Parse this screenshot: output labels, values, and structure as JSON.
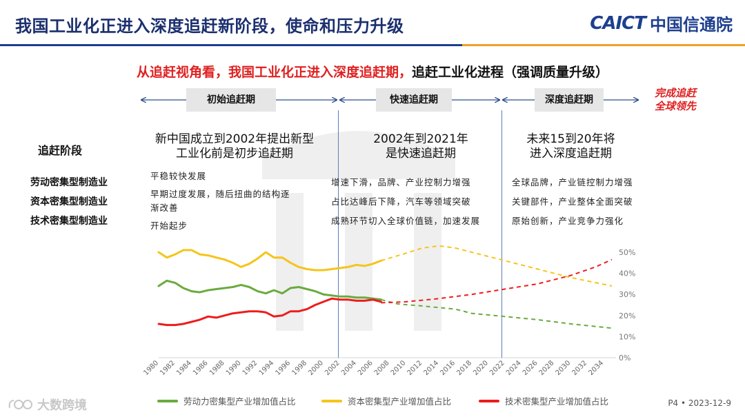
{
  "header": {
    "title": "我国工业化正进入深度追赶新阶段，使命和压力升级",
    "logo_brand": "CAICT",
    "logo_cn": "中国信通院"
  },
  "subtitle": {
    "red_part": "从追赶视角看，我国工业化正进入深度追赶期，",
    "black_part": "追赶工业化进程（强调质量升级）"
  },
  "phases": [
    {
      "label": "初始追赶期"
    },
    {
      "label": "快速追赶期"
    },
    {
      "label": "深度追赶期"
    }
  ],
  "final_goal": [
    "完成追赶",
    "全球领先"
  ],
  "stage_title": "追赶阶段",
  "stages": [
    {
      "line1": "新中国成立到2002年提出新型",
      "line2": "工业化前是初步追赶期"
    },
    {
      "line1": "2002年到2021年",
      "line2": "是快速追赶期"
    },
    {
      "line1": "未来15到20年将",
      "line2": "进入深度追赶期"
    }
  ],
  "industries": [
    "劳动密集型制造业",
    "资本密集型制造业",
    "技术密集型制造业"
  ],
  "descriptions": [
    [
      "平稳较快发展",
      "早期过度发展，随后扭曲的结构逐",
      "渐改善",
      "开始起步"
    ],
    [
      "增速下滑，品牌、产业控制力增强",
      "占比达峰后下降，汽车等领域突破",
      "成熟环节切入全球价值链，加速发展"
    ],
    [
      "全球品牌，产业链控制力增强",
      "关键部件，产业整体全面突破",
      "原始创新，产业竞争力强化"
    ]
  ],
  "chart_data": {
    "type": "line",
    "x_ticks": [
      "1980",
      "1982",
      "1984",
      "1986",
      "1988",
      "1990",
      "1992",
      "1994",
      "1996",
      "1998",
      "2000",
      "2002",
      "2004",
      "2006",
      "2008",
      "2010",
      "2012",
      "2014",
      "2016",
      "2018",
      "2020",
      "2022",
      "2024",
      "2026",
      "2028",
      "2030",
      "2032",
      "2034"
    ],
    "y_ticks": [
      "0%",
      "10%",
      "20%",
      "30%",
      "40%",
      "50%"
    ],
    "ylim": [
      0,
      50
    ],
    "xlim": [
      1980,
      2035.5
    ],
    "series": [
      {
        "name": "劳动力密集型产业增加值占比",
        "color": "#6aaa3e",
        "actual": [
          [
            1980,
            34
          ],
          [
            1981,
            36.5
          ],
          [
            1982,
            35.5
          ],
          [
            1983,
            33
          ],
          [
            1984,
            31.5
          ],
          [
            1985,
            31
          ],
          [
            1986,
            32
          ],
          [
            1987,
            32.5
          ],
          [
            1988,
            33
          ],
          [
            1989,
            33.5
          ],
          [
            1990,
            34.5
          ],
          [
            1991,
            33.5
          ],
          [
            1992,
            31.5
          ],
          [
            1993,
            30.5
          ],
          [
            1994,
            32
          ],
          [
            1995,
            30.5
          ],
          [
            1996,
            33
          ],
          [
            1997,
            33.5
          ],
          [
            1998,
            32.5
          ],
          [
            1999,
            31.5
          ],
          [
            2000,
            30
          ],
          [
            2001,
            29.5
          ],
          [
            2002,
            29
          ],
          [
            2003,
            29
          ],
          [
            2004,
            28.5
          ],
          [
            2005,
            28.5
          ],
          [
            2006,
            28
          ],
          [
            2007,
            27.5
          ]
        ],
        "projected": [
          [
            2007,
            27.5
          ],
          [
            2009,
            25.5
          ],
          [
            2012,
            24.5
          ],
          [
            2016,
            23
          ],
          [
            2018,
            21
          ],
          [
            2022,
            19.5
          ],
          [
            2026,
            18
          ],
          [
            2030,
            16
          ],
          [
            2035,
            14
          ]
        ]
      },
      {
        "name": "资本密集型产业增加值占比",
        "color": "#f5c518",
        "actual": [
          [
            1980,
            50
          ],
          [
            1981,
            47.5
          ],
          [
            1982,
            49
          ],
          [
            1983,
            51
          ],
          [
            1984,
            51
          ],
          [
            1985,
            49
          ],
          [
            1986,
            48.5
          ],
          [
            1987,
            47.5
          ],
          [
            1988,
            46.5
          ],
          [
            1989,
            45
          ],
          [
            1990,
            43
          ],
          [
            1991,
            44.5
          ],
          [
            1992,
            47
          ],
          [
            1993,
            50
          ],
          [
            1994,
            47.5
          ],
          [
            1995,
            47.5
          ],
          [
            1996,
            45
          ],
          [
            1997,
            43
          ],
          [
            1998,
            42
          ],
          [
            1999,
            41.5
          ],
          [
            2000,
            41.5
          ],
          [
            2001,
            42
          ],
          [
            2002,
            42.5
          ],
          [
            2003,
            43
          ],
          [
            2004,
            44
          ],
          [
            2005,
            43.5
          ],
          [
            2006,
            44.5
          ],
          [
            2007,
            46
          ]
        ],
        "projected": [
          [
            2007,
            46
          ],
          [
            2010,
            49.5
          ],
          [
            2012,
            52
          ],
          [
            2014,
            53
          ],
          [
            2016,
            52
          ],
          [
            2019,
            49
          ],
          [
            2022,
            46
          ],
          [
            2026,
            42
          ],
          [
            2030,
            38
          ],
          [
            2035,
            34
          ]
        ]
      },
      {
        "name": "技术密集型产业增加值占比",
        "color": "#ee1c1c",
        "actual": [
          [
            1980,
            16
          ],
          [
            1981,
            15.5
          ],
          [
            1982,
            15.5
          ],
          [
            1983,
            16
          ],
          [
            1984,
            17
          ],
          [
            1985,
            18
          ],
          [
            1986,
            19.5
          ],
          [
            1987,
            19
          ],
          [
            1988,
            20
          ],
          [
            1989,
            21
          ],
          [
            1990,
            21.5
          ],
          [
            1991,
            22
          ],
          [
            1992,
            22
          ],
          [
            1993,
            21.5
          ],
          [
            1994,
            19.5
          ],
          [
            1995,
            20
          ],
          [
            1996,
            22
          ],
          [
            1997,
            22
          ],
          [
            1998,
            23
          ],
          [
            1999,
            25
          ],
          [
            2000,
            26.5
          ],
          [
            2001,
            28
          ],
          [
            2002,
            27.5
          ],
          [
            2003,
            27.5
          ],
          [
            2004,
            27
          ],
          [
            2005,
            27
          ],
          [
            2006,
            27.5
          ],
          [
            2007,
            26.5
          ]
        ],
        "projected": [
          [
            2007,
            26
          ],
          [
            2010,
            26.5
          ],
          [
            2014,
            28
          ],
          [
            2018,
            30
          ],
          [
            2022,
            32.5
          ],
          [
            2026,
            35
          ],
          [
            2030,
            39
          ],
          [
            2033,
            43
          ],
          [
            2035,
            46.5
          ]
        ]
      }
    ]
  },
  "footer": {
    "brand": "大数跨境",
    "page": "P4 • 2023-12-9"
  }
}
